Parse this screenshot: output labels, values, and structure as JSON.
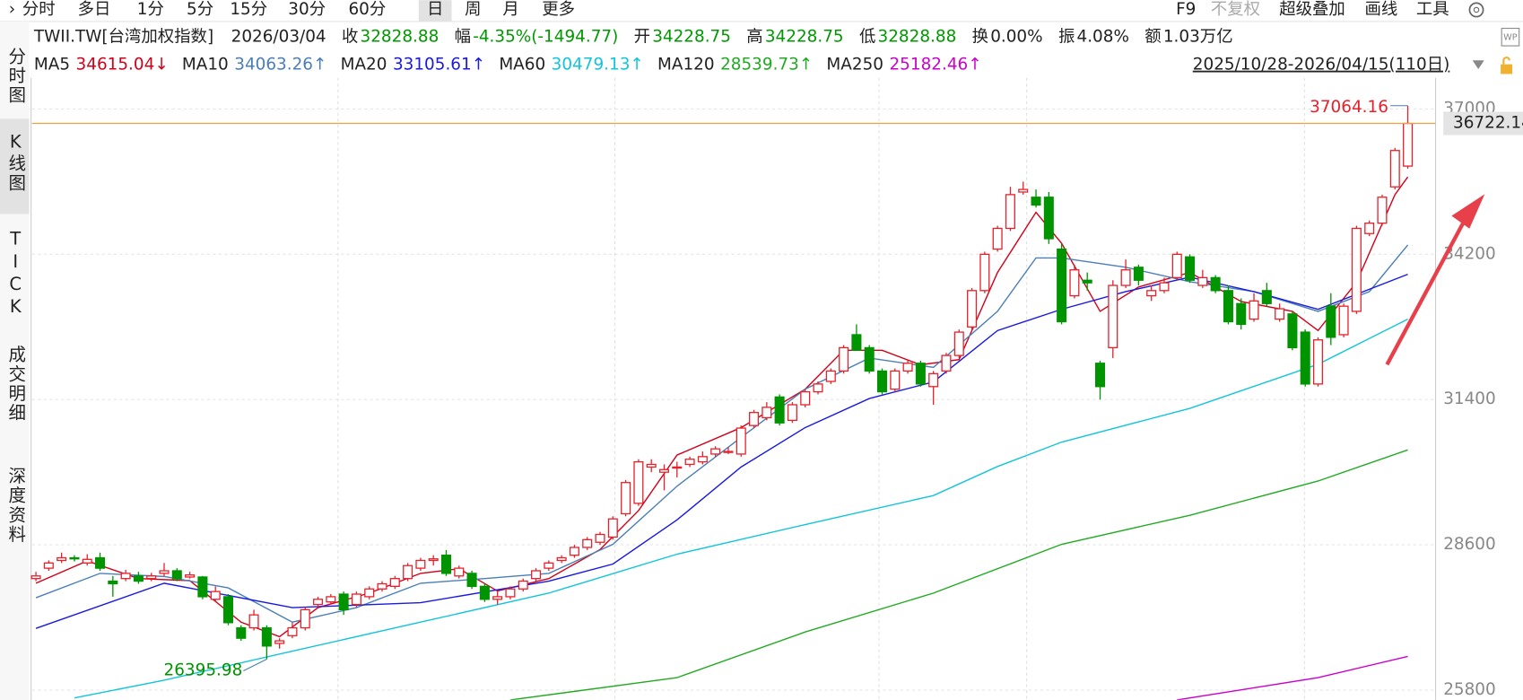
{
  "toolbar": {
    "periods": [
      "分时",
      "多日",
      "1分",
      "5分",
      "15分",
      "30分",
      "60分",
      "日",
      "周",
      "月",
      "更多"
    ],
    "selected": 7,
    "tools": [
      {
        "label": "F9",
        "enabled": true
      },
      {
        "label": "不复权",
        "enabled": false
      },
      {
        "label": "超级叠加",
        "enabled": true
      },
      {
        "label": "画线",
        "enabled": true
      },
      {
        "label": "工具",
        "enabled": true
      }
    ]
  },
  "sidebar": {
    "items": [
      "分时图",
      "K线图",
      "TICK",
      "成交明细",
      "深度资料"
    ],
    "selected": 1
  },
  "chart_data": {
    "type": "candlestick",
    "symbol": "TWII.TW[台湾加权指数]",
    "date": "2026/03/04",
    "fields": [
      {
        "label": "收",
        "value": 32828.88,
        "color": "#009900"
      },
      {
        "label": "幅",
        "value": "-4.35%(-1494.77)",
        "color": "#009900"
      },
      {
        "label": "开",
        "value": 34228.75,
        "color": "#009900"
      },
      {
        "label": "高",
        "value": 34228.75,
        "color": "#009900"
      },
      {
        "label": "低",
        "value": 32828.88,
        "color": "#009900"
      },
      {
        "label": "换",
        "value": "0.00%",
        "color": "#222222"
      },
      {
        "label": "振",
        "value": "4.08%",
        "color": "#222222"
      },
      {
        "label": "额",
        "value": "1.03万亿",
        "color": "#222222"
      }
    ],
    "range": "2025/10/28-2026/04/15(110日)",
    "up_color": "#e8202a",
    "down_color": "#009400",
    "last_price_color": "#f0a040",
    "ylim": [
      25612,
      37600
    ],
    "yticks": [
      37000,
      34200,
      31400,
      28600,
      25800
    ],
    "grid": true,
    "candles": [
      [
        27950,
        28080,
        27900,
        28000
      ],
      [
        28150,
        28300,
        28100,
        28250
      ],
      [
        28300,
        28450,
        28250,
        28350
      ],
      [
        28350,
        28400,
        28280,
        28330
      ],
      [
        28250,
        28420,
        28200,
        28320
      ],
      [
        28350,
        28450,
        28100,
        28150
      ],
      [
        27900,
        28000,
        27600,
        27850
      ],
      [
        27950,
        28120,
        27900,
        28050
      ],
      [
        28000,
        28080,
        27850,
        27900
      ],
      [
        27950,
        28060,
        27900,
        28000
      ],
      [
        28050,
        28250,
        28000,
        28100
      ],
      [
        28100,
        28150,
        27900,
        27950
      ],
      [
        27980,
        28080,
        27950,
        28020
      ],
      [
        27980,
        28000,
        27550,
        27600
      ],
      [
        27550,
        27800,
        27500,
        27700
      ],
      [
        27600,
        27650,
        27050,
        27100
      ],
      [
        27000,
        27050,
        26750,
        26800
      ],
      [
        27000,
        27350,
        26950,
        27250
      ],
      [
        27000,
        27050,
        26395.98,
        26650
      ],
      [
        26700,
        26800,
        26600,
        26750
      ],
      [
        26850,
        27100,
        26800,
        27000
      ],
      [
        27000,
        27400,
        26950,
        27350
      ],
      [
        27450,
        27600,
        27400,
        27550
      ],
      [
        27500,
        27650,
        27450,
        27600
      ],
      [
        27650,
        27700,
        27250,
        27350
      ],
      [
        27450,
        27700,
        27400,
        27650
      ],
      [
        27600,
        27800,
        27550,
        27750
      ],
      [
        27750,
        27900,
        27700,
        27850
      ],
      [
        27800,
        28000,
        27750,
        27950
      ],
      [
        27950,
        28250,
        27900,
        28200
      ],
      [
        28150,
        28350,
        28100,
        28300
      ],
      [
        28300,
        28400,
        28200,
        28330
      ],
      [
        28400,
        28500,
        28000,
        28050
      ],
      [
        28000,
        28200,
        27950,
        28150
      ],
      [
        28050,
        28100,
        27750,
        27800
      ],
      [
        27800,
        27850,
        27500,
        27550
      ],
      [
        27550,
        27700,
        27450,
        27600
      ],
      [
        27600,
        27800,
        27550,
        27750
      ],
      [
        27750,
        27950,
        27700,
        27900
      ],
      [
        27950,
        28150,
        27900,
        28100
      ],
      [
        28150,
        28300,
        28100,
        28250
      ],
      [
        28300,
        28400,
        28250,
        28350
      ],
      [
        28400,
        28600,
        28350,
        28550
      ],
      [
        28550,
        28750,
        28500,
        28700
      ],
      [
        28650,
        28850,
        28600,
        28800
      ],
      [
        28750,
        29150,
        28700,
        29100
      ],
      [
        29200,
        29850,
        29150,
        29800
      ],
      [
        29400,
        30250,
        29350,
        30200
      ],
      [
        30100,
        30250,
        30000,
        30150
      ],
      [
        30000,
        30150,
        29650,
        30050
      ],
      [
        30080,
        30200,
        29900,
        30100
      ],
      [
        30150,
        30300,
        30100,
        30250
      ],
      [
        30200,
        30400,
        30150,
        30300
      ],
      [
        30350,
        30500,
        30300,
        30450
      ],
      [
        30400,
        30480,
        30350,
        30400
      ],
      [
        30350,
        30900,
        30300,
        30850
      ],
      [
        30900,
        31200,
        30850,
        31150
      ],
      [
        31050,
        31350,
        31000,
        31250
      ],
      [
        31450,
        31500,
        30900,
        30950
      ],
      [
        31000,
        31350,
        30950,
        31300
      ],
      [
        31300,
        31600,
        31250,
        31550
      ],
      [
        31550,
        31750,
        31500,
        31700
      ],
      [
        31750,
        32000,
        31700,
        31950
      ],
      [
        31950,
        32450,
        31900,
        32400
      ],
      [
        32650,
        32850,
        32350,
        32350
      ],
      [
        32400,
        32450,
        31900,
        31950
      ],
      [
        31950,
        32000,
        31500,
        31550
      ],
      [
        31600,
        32000,
        31550,
        31950
      ],
      [
        31950,
        32150,
        31900,
        32100
      ],
      [
        32100,
        32150,
        31650,
        31700
      ],
      [
        31650,
        31950,
        31300,
        31900
      ],
      [
        31950,
        32300,
        31900,
        32250
      ],
      [
        32250,
        32750,
        32200,
        32700
      ],
      [
        32800,
        33550,
        32750,
        33500
      ],
      [
        33500,
        34250,
        33450,
        34200
      ],
      [
        34300,
        34750,
        34250,
        34700
      ],
      [
        34700,
        35500,
        34650,
        35350
      ],
      [
        35400,
        35600,
        35350,
        35450
      ],
      [
        35300,
        35450,
        35100,
        35150
      ],
      [
        35300,
        35400,
        34400,
        34500
      ],
      [
        34300,
        34400,
        32850,
        32900
      ],
      [
        33400,
        34000,
        33350,
        33900
      ],
      [
        33700,
        33850,
        33500,
        33650
      ],
      [
        32100,
        32150,
        31400,
        31650
      ],
      [
        32400,
        33700,
        32200,
        33600
      ],
      [
        33600,
        34100,
        33550,
        33900
      ],
      [
        33950,
        34000,
        33600,
        33700
      ],
      [
        33400,
        33600,
        33300,
        33500
      ],
      [
        33500,
        33750,
        33450,
        33650
      ],
      [
        33750,
        34250,
        33700,
        34200
      ],
      [
        34150,
        34200,
        33650,
        33700
      ],
      [
        33600,
        33900,
        33550,
        33750
      ],
      [
        33750,
        33800,
        33450,
        33500
      ],
      [
        33500,
        33600,
        32850,
        32900
      ],
      [
        33250,
        33350,
        32750,
        32850
      ],
      [
        32950,
        33450,
        32900,
        33300
      ],
      [
        33500,
        33650,
        33200,
        33250
      ],
      [
        32950,
        33250,
        32900,
        33150
      ],
      [
        33050,
        33100,
        32350,
        32400
      ],
      [
        32700,
        32750,
        31650,
        31700
      ],
      [
        31700,
        32600,
        31650,
        32550
      ],
      [
        33200,
        33450,
        32450,
        32600
      ],
      [
        32650,
        33250,
        32600,
        33200
      ],
      [
        33100,
        34750,
        33050,
        34700
      ],
      [
        34600,
        34850,
        34550,
        34800
      ],
      [
        34800,
        35350,
        34750,
        35300
      ],
      [
        35500,
        36250,
        35450,
        36200
      ],
      [
        35900,
        37064.16,
        35850,
        36722.14
      ]
    ],
    "series": [
      {
        "name": "MA5",
        "value": 34615.04,
        "trend": "↓",
        "color": "#d0021b",
        "x": [
          0,
          4,
          8,
          12,
          16,
          19,
          22,
          26,
          30,
          33,
          36,
          40,
          44,
          47,
          50,
          55,
          60,
          63,
          66,
          69,
          72,
          75,
          78,
          80,
          83,
          86,
          90,
          94,
          98,
          100,
          103,
          106,
          107
        ],
        "values": [
          27860,
          28290,
          27950,
          27910,
          27110,
          26830,
          27390,
          27670,
          28050,
          28140,
          27710,
          27950,
          28510,
          29260,
          30330,
          30860,
          31600,
          32350,
          32350,
          32070,
          32170,
          33850,
          35010,
          34410,
          33100,
          33570,
          33850,
          33290,
          33100,
          32730,
          33660,
          35350,
          35690
        ]
      },
      {
        "name": "MA10",
        "value": 34063.26,
        "trend": "↑",
        "color": "#4a7fb8",
        "x": [
          0,
          5,
          10,
          15,
          20,
          25,
          30,
          35,
          40,
          45,
          50,
          55,
          60,
          65,
          70,
          75,
          78,
          80,
          85,
          90,
          95,
          100,
          104,
          107
        ],
        "values": [
          27580,
          28050,
          27990,
          27770,
          27110,
          27390,
          27860,
          27950,
          28050,
          28610,
          29730,
          30670,
          31600,
          32200,
          32020,
          33100,
          34130,
          34130,
          33950,
          33670,
          33480,
          33100,
          33480,
          34380
        ]
      },
      {
        "name": "MA20",
        "value": 33105.61,
        "trend": "↑",
        "color": "#1a1ae0",
        "x": [
          0,
          10,
          20,
          30,
          40,
          45,
          50,
          55,
          60,
          65,
          70,
          75,
          80,
          85,
          90,
          95,
          100,
          107
        ],
        "values": [
          26990,
          27860,
          27390,
          27485,
          27900,
          28230,
          29080,
          30100,
          30860,
          31420,
          31740,
          32730,
          33140,
          33480,
          33760,
          33480,
          33140,
          33815
        ]
      },
      {
        "name": "MA60",
        "value": 30479.13,
        "trend": "↑",
        "color": "#12c4dc",
        "x": [
          3,
          10,
          20,
          30,
          40,
          50,
          60,
          70,
          75,
          80,
          90,
          100,
          107
        ],
        "values": [
          25650,
          25990,
          26550,
          27110,
          27670,
          28420,
          28990,
          29550,
          30110,
          30580,
          31230,
          32080,
          32950
        ]
      },
      {
        "name": "MA120",
        "value": 28539.73,
        "trend": "↑",
        "color": "#22aa22",
        "x": [
          37,
          50,
          60,
          70,
          80,
          90,
          100,
          107
        ],
        "values": [
          25610,
          26040,
          26920,
          27670,
          28610,
          29170,
          29830,
          30430
        ]
      },
      {
        "name": "MA250",
        "value": 25182.46,
        "trend": "↑",
        "color": "#cc00cc",
        "x": [
          89,
          100,
          107
        ],
        "values": [
          25610,
          26040,
          26450
        ]
      }
    ]
  }
}
